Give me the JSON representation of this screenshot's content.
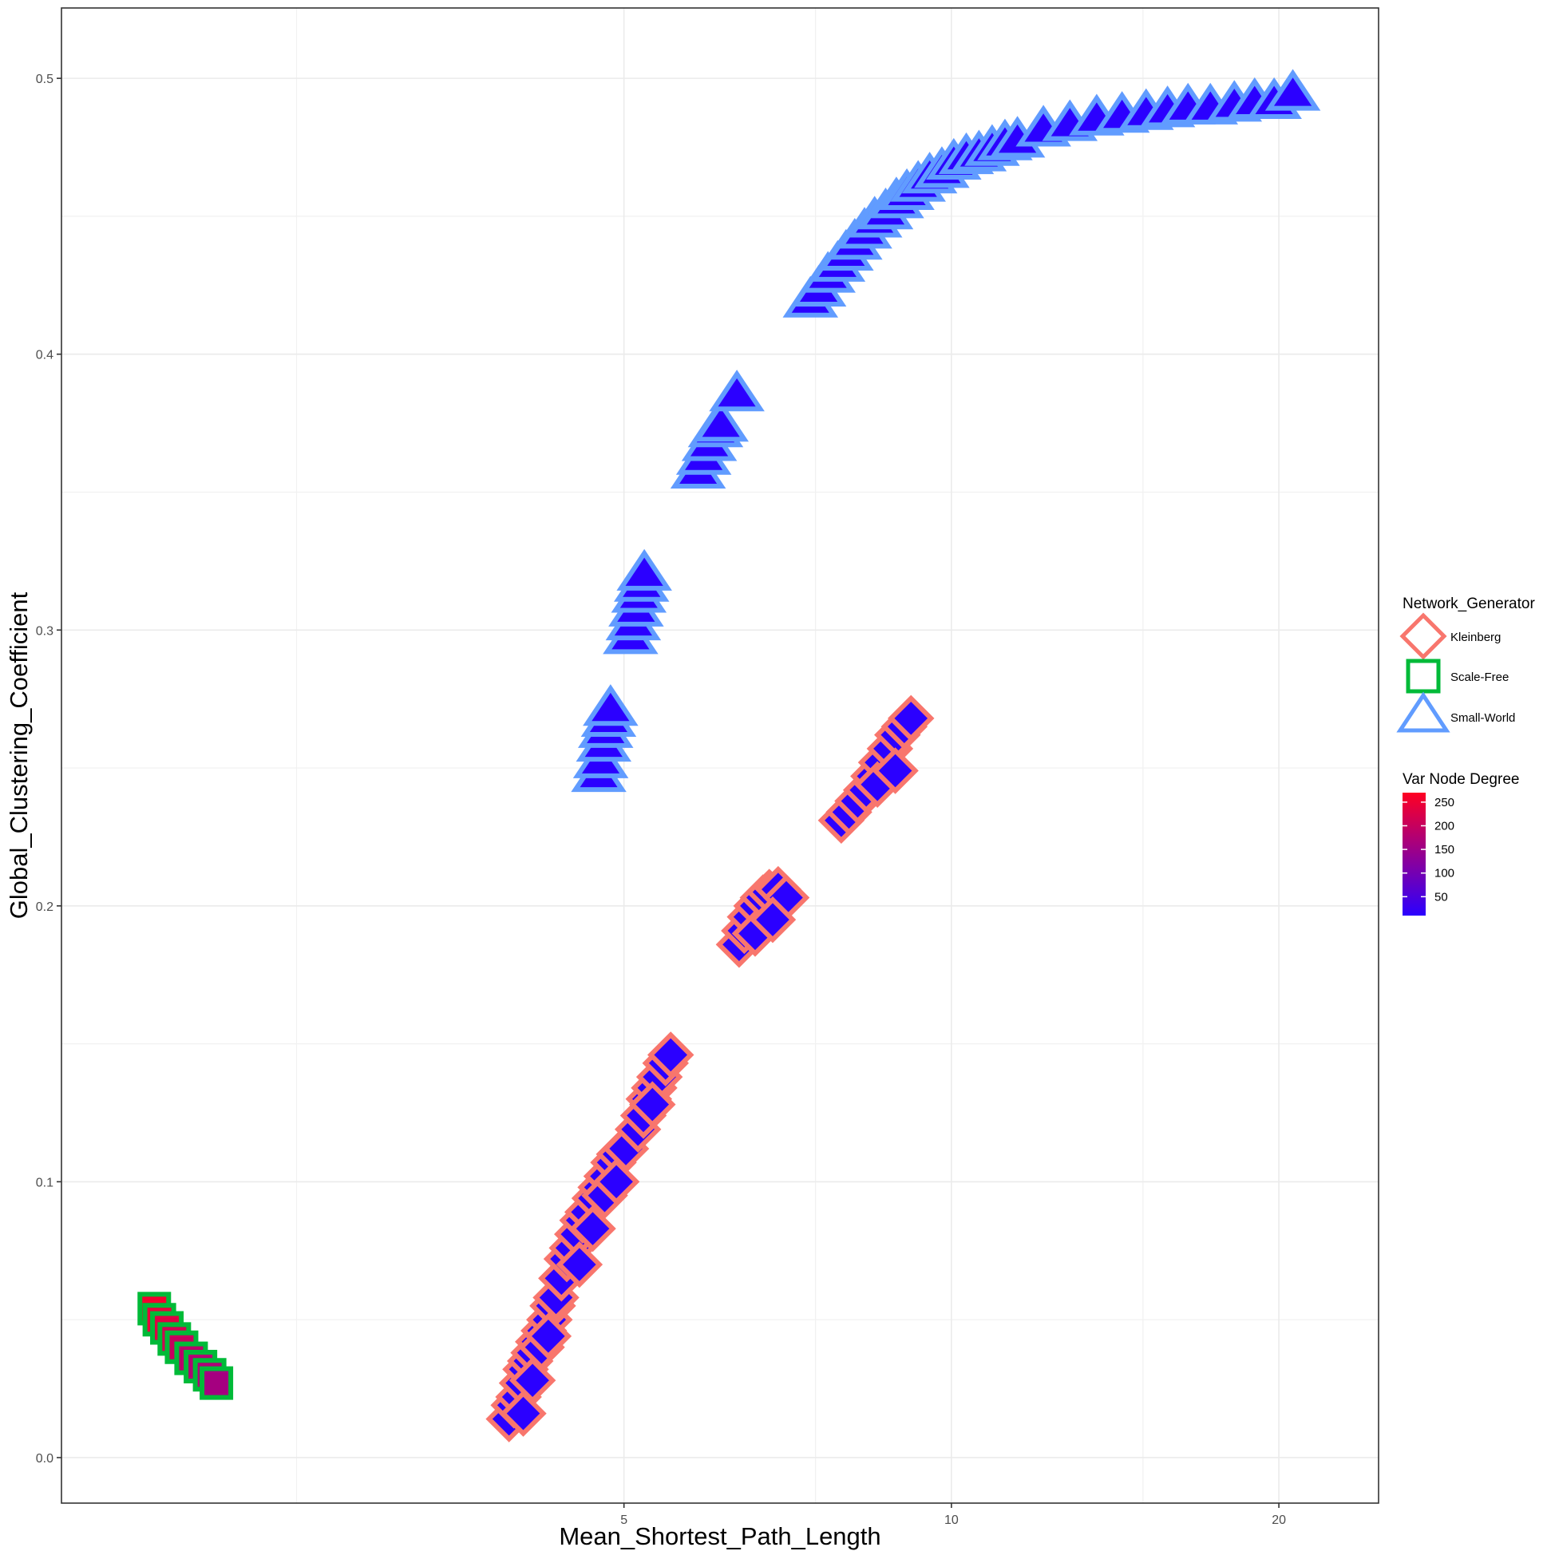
{
  "chart_data": {
    "type": "scatter",
    "xlabel": "Mean_Shortest_Path_Length",
    "ylabel": "Global_Clustering_Coefficient",
    "x_scale": "log",
    "xlim": [
      1.52,
      24.7
    ],
    "ylim": [
      -0.0165,
      0.5255
    ],
    "x_ticks": [
      5,
      10,
      20
    ],
    "x_tick_labels": [
      "5",
      "10",
      "20"
    ],
    "x_minor_ticks": [
      2.5,
      7.5,
      15
    ],
    "y_ticks": [
      0.0,
      0.1,
      0.2,
      0.3,
      0.4,
      0.5
    ],
    "y_tick_labels": [
      "0.0",
      "0.1",
      "0.2",
      "0.3",
      "0.4",
      "0.5"
    ],
    "y_minor_ticks": [
      0.05,
      0.15,
      0.25,
      0.35,
      0.45
    ],
    "grid": true,
    "legend_placement": "right",
    "legend": {
      "shape_title": "Network_Generator",
      "color_title": "Var Node Degree",
      "color_ticks": [
        250,
        200,
        150,
        100,
        50
      ],
      "color_range": [
        10,
        270
      ],
      "color_low": "#2b00ff",
      "color_high": "#ff0022"
    },
    "series": [
      {
        "name": "Kleinberg",
        "shape": "diamond",
        "stroke": "#f8766d",
        "var_node_degree": 8,
        "points": [
          [
            3.92,
            0.014
          ],
          [
            3.96,
            0.019
          ],
          [
            4.0,
            0.022
          ],
          [
            4.03,
            0.027
          ],
          [
            4.06,
            0.032
          ],
          [
            4.1,
            0.035
          ],
          [
            4.13,
            0.038
          ],
          [
            4.17,
            0.042
          ],
          [
            4.22,
            0.046
          ],
          [
            4.27,
            0.05
          ],
          [
            4.3,
            0.055
          ],
          [
            4.33,
            0.058
          ],
          [
            4.04,
            0.016
          ],
          [
            4.12,
            0.028
          ],
          [
            4.2,
            0.04
          ],
          [
            4.26,
            0.044
          ],
          [
            4.38,
            0.065
          ],
          [
            4.43,
            0.072
          ],
          [
            4.48,
            0.076
          ],
          [
            4.53,
            0.081
          ],
          [
            4.58,
            0.086
          ],
          [
            4.63,
            0.089
          ],
          [
            4.7,
            0.094
          ],
          [
            4.76,
            0.098
          ],
          [
            4.82,
            0.102
          ],
          [
            4.89,
            0.107
          ],
          [
            4.95,
            0.11
          ],
          [
            5.02,
            0.112
          ],
          [
            4.55,
            0.07
          ],
          [
            4.68,
            0.083
          ],
          [
            4.8,
            0.095
          ],
          [
            4.92,
            0.1
          ],
          [
            5.15,
            0.119
          ],
          [
            5.21,
            0.124
          ],
          [
            5.27,
            0.13
          ],
          [
            5.33,
            0.134
          ],
          [
            5.39,
            0.138
          ],
          [
            5.46,
            0.143
          ],
          [
            5.52,
            0.146
          ],
          [
            5.31,
            0.128
          ],
          [
            6.38,
            0.186
          ],
          [
            6.45,
            0.191
          ],
          [
            6.53,
            0.196
          ],
          [
            6.62,
            0.2
          ],
          [
            6.71,
            0.203
          ],
          [
            6.8,
            0.205
          ],
          [
            6.93,
            0.206
          ],
          [
            7.05,
            0.203
          ],
          [
            6.6,
            0.19
          ],
          [
            6.85,
            0.195
          ],
          [
            7.92,
            0.231
          ],
          [
            8.05,
            0.234
          ],
          [
            8.2,
            0.238
          ],
          [
            8.35,
            0.242
          ],
          [
            8.48,
            0.247
          ],
          [
            8.62,
            0.252
          ],
          [
            8.78,
            0.257
          ],
          [
            8.92,
            0.262
          ],
          [
            9.05,
            0.265
          ],
          [
            9.18,
            0.268
          ],
          [
            8.55,
            0.244
          ],
          [
            8.88,
            0.249
          ]
        ]
      },
      {
        "name": "Scale-Free",
        "shape": "square",
        "stroke": "#00ba38",
        "points": [
          [
            1.85,
            0.054,
            255
          ],
          [
            1.87,
            0.05,
            240
          ],
          [
            1.9,
            0.047,
            230
          ],
          [
            1.93,
            0.043,
            215
          ],
          [
            1.96,
            0.04,
            200
          ],
          [
            2.0,
            0.036,
            185
          ],
          [
            2.04,
            0.033,
            175
          ],
          [
            2.08,
            0.03,
            170
          ],
          [
            2.11,
            0.027,
            160
          ]
        ]
      },
      {
        "name": "Small-World",
        "shape": "triangle",
        "stroke": "#619cff",
        "var_node_degree": 8,
        "points": [
          [
            4.74,
            0.247
          ],
          [
            4.76,
            0.252
          ],
          [
            4.79,
            0.258
          ],
          [
            4.81,
            0.263
          ],
          [
            4.84,
            0.267
          ],
          [
            4.86,
            0.271
          ],
          [
            5.07,
            0.297
          ],
          [
            5.1,
            0.302
          ],
          [
            5.13,
            0.307
          ],
          [
            5.16,
            0.312
          ],
          [
            5.19,
            0.316
          ],
          [
            5.22,
            0.32
          ],
          [
            5.85,
            0.357
          ],
          [
            5.92,
            0.362
          ],
          [
            5.99,
            0.367
          ],
          [
            6.07,
            0.372
          ],
          [
            6.14,
            0.374
          ],
          [
            6.35,
            0.385
          ],
          [
            7.42,
            0.419
          ],
          [
            7.55,
            0.423
          ],
          [
            7.7,
            0.428
          ],
          [
            7.86,
            0.432
          ],
          [
            8.0,
            0.436
          ],
          [
            8.15,
            0.44
          ],
          [
            8.32,
            0.444
          ],
          [
            8.5,
            0.448
          ],
          [
            8.7,
            0.451
          ],
          [
            8.9,
            0.455
          ],
          [
            9.1,
            0.458
          ],
          [
            9.32,
            0.461
          ],
          [
            9.55,
            0.464
          ],
          [
            9.8,
            0.466
          ],
          [
            10.05,
            0.469
          ],
          [
            10.32,
            0.471
          ],
          [
            10.6,
            0.472
          ],
          [
            10.9,
            0.474
          ],
          [
            11.2,
            0.476
          ],
          [
            11.5,
            0.477
          ],
          [
            12.15,
            0.481
          ],
          [
            12.85,
            0.483
          ],
          [
            13.6,
            0.485
          ],
          [
            14.35,
            0.486
          ],
          [
            15.1,
            0.487
          ],
          [
            15.8,
            0.488
          ],
          [
            16.5,
            0.489
          ],
          [
            17.3,
            0.489
          ],
          [
            18.2,
            0.49
          ],
          [
            19.0,
            0.491
          ],
          [
            19.8,
            0.491
          ],
          [
            20.6,
            0.494
          ]
        ]
      }
    ]
  }
}
